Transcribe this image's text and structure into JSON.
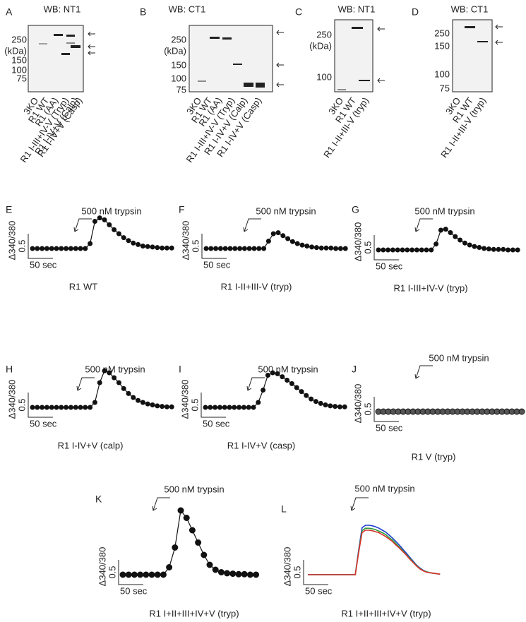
{
  "blots": [
    {
      "letter": "A",
      "title": "WB: NT1",
      "ticks": [
        250,
        150,
        100,
        75
      ],
      "unit": "(kDa)",
      "lanes": [
        "3KO",
        "R1 WT",
        "R1 (AA)",
        "R1 I-III+IV-V (Tryp)",
        "R1 I-IV+V (Calp)",
        "R1 I-IV+V (Casp)"
      ]
    },
    {
      "letter": "B",
      "title": "WB: CT1",
      "ticks": [
        250,
        150,
        100,
        75
      ],
      "unit": "(kDa)",
      "lanes": [
        "3KO",
        "R1 WT",
        "R1 (AA)",
        "R1 I-III+IV-V (Tryp)",
        "R1 I-IV+V (Calp)",
        "R1 I-IV+V (Casp)"
      ]
    },
    {
      "letter": "C",
      "title": "WB: NT1",
      "ticks": [
        250,
        100
      ],
      "unit": "(kDa)",
      "lanes": [
        "3KO",
        "R1 WT",
        "R1 I-II+III-V (tryp)"
      ]
    },
    {
      "letter": "D",
      "title": "WB: CT1",
      "ticks": [
        250,
        150,
        100,
        75
      ],
      "lanes": [
        "3KO",
        "R1 WT",
        "R1 I-II+III-V (tryp)"
      ]
    }
  ],
  "traces": [
    {
      "letter": "E",
      "stimulus": "500 nM trypsin",
      "ylabel": "Δ340/380",
      "yscale": 0.5,
      "xscale": "50 sec",
      "caption": "R1 WT",
      "values": [
        0,
        0,
        0,
        0,
        0,
        0,
        0,
        0,
        0,
        0,
        0,
        0,
        0.1,
        0.55,
        0.62,
        0.58,
        0.48,
        0.38,
        0.3,
        0.22,
        0.16,
        0.11,
        0.08,
        0.05,
        0.04,
        0.03,
        0.02,
        0.01,
        0.01,
        0.01
      ]
    },
    {
      "letter": "F",
      "stimulus": "500 nM trypsin",
      "ylabel": "Δ340/380",
      "yscale": 0.5,
      "xscale": "50 sec",
      "caption": "R1 I-II+III-V (tryp)",
      "values": [
        0,
        0,
        0,
        0,
        0,
        0,
        0,
        0,
        0,
        0,
        0,
        0,
        0,
        0.15,
        0.3,
        0.32,
        0.26,
        0.2,
        0.14,
        0.1,
        0.07,
        0.05,
        0.03,
        0.02,
        0.01,
        0.01,
        0.01,
        0,
        0,
        0
      ]
    },
    {
      "letter": "G",
      "stimulus": "500 nM trypsin",
      "ylabel": "Δ340/380",
      "yscale": 0.5,
      "xscale": "50 sec",
      "caption": "R1 I-III+IV-V (tryp)",
      "values": [
        0,
        0,
        0,
        0,
        0,
        0,
        0,
        0,
        0,
        0,
        0,
        0,
        0.12,
        0.4,
        0.42,
        0.35,
        0.27,
        0.2,
        0.14,
        0.1,
        0.07,
        0.05,
        0.03,
        0.02,
        0.01,
        0.01,
        0.01,
        0,
        0,
        0
      ]
    },
    {
      "letter": "H",
      "stimulus": "500 nM trypsin",
      "ylabel": "Δ340/380",
      "yscale": 0.5,
      "xscale": "50 sec",
      "caption": "R1 I-IV+V (calp)",
      "values": [
        0,
        0,
        0,
        0,
        0,
        0,
        0,
        0,
        0,
        0,
        0,
        0,
        0,
        0.1,
        0.5,
        0.74,
        0.7,
        0.6,
        0.5,
        0.38,
        0.28,
        0.2,
        0.14,
        0.1,
        0.07,
        0.05,
        0.03,
        0.02,
        0.01,
        0.01
      ]
    },
    {
      "letter": "I",
      "stimulus": "500 nM trypsin",
      "ylabel": "Δ340/380",
      "yscale": 0.5,
      "xscale": "50 sec",
      "caption": "R1 I-IV+V (casp)",
      "values": [
        0,
        0,
        0,
        0,
        0,
        0,
        0,
        0,
        0,
        0,
        0,
        0.1,
        0.35,
        0.65,
        0.7,
        0.68,
        0.62,
        0.55,
        0.48,
        0.4,
        0.32,
        0.24,
        0.17,
        0.12,
        0.08,
        0.05,
        0.03,
        0.02,
        0.01,
        0.01
      ]
    },
    {
      "letter": "J",
      "stimulus": "500 nM trypsin",
      "ylabel": "Δ340/380",
      "yscale": 0.5,
      "xscale": "50 sec",
      "caption": "R1 V (tryp)",
      "values": [
        0,
        0,
        0,
        0,
        0,
        0,
        0,
        0,
        0,
        0,
        0,
        0,
        0,
        0,
        0,
        0,
        0,
        0,
        0,
        0,
        0,
        0,
        0,
        0,
        0,
        0,
        0,
        0,
        0,
        0
      ]
    },
    {
      "letter": "K",
      "stimulus": "500 nM trypsin",
      "ylabel": "Δ340/380",
      "yscale": 0.5,
      "xscale": "50 sec",
      "caption": "R1 I+II+III+IV+V (tryp)",
      "values": [
        0,
        0,
        0,
        0,
        0,
        0,
        0,
        0,
        0.15,
        0.55,
        1.3,
        1.15,
        0.9,
        0.65,
        0.4,
        0.2,
        0.1,
        0.05,
        0.03,
        0.02,
        0.01,
        0.01,
        0,
        0
      ]
    },
    {
      "letter": "L",
      "stimulus": "500 nM trypsin",
      "ylabel": "Δ340/380",
      "yscale": 0.5,
      "xscale": "50 sec",
      "caption": "R1 I+II+III+IV+V (tryp)",
      "series": [
        {
          "color": "#1f3fd0",
          "values": [
            0,
            0,
            0,
            0,
            0,
            0,
            0,
            0,
            0,
            0,
            0,
            0,
            0,
            0,
            0,
            0.5,
            0.95,
            1.0,
            1.0,
            0.99,
            0.97,
            0.94,
            0.9,
            0.86,
            0.8,
            0.74,
            0.67,
            0.6,
            0.52,
            0.44,
            0.36,
            0.28,
            0.2,
            0.14,
            0.09,
            0.06,
            0.04,
            0.03,
            0.02,
            0.01
          ]
        },
        {
          "color": "#2a9a3a",
          "values": [
            0,
            0,
            0,
            0,
            0,
            0,
            0,
            0,
            0,
            0,
            0,
            0,
            0,
            0,
            0,
            0.47,
            0.89,
            0.94,
            0.94,
            0.93,
            0.91,
            0.88,
            0.85,
            0.81,
            0.75,
            0.7,
            0.63,
            0.56,
            0.49,
            0.41,
            0.34,
            0.26,
            0.19,
            0.13,
            0.08,
            0.06,
            0.04,
            0.03,
            0.02,
            0.01
          ]
        },
        {
          "color": "#d8322a",
          "values": [
            0,
            0,
            0,
            0,
            0,
            0,
            0,
            0,
            0,
            0,
            0,
            0,
            0,
            0,
            0,
            0.45,
            0.85,
            0.9,
            0.9,
            0.89,
            0.87,
            0.85,
            0.81,
            0.77,
            0.72,
            0.67,
            0.6,
            0.54,
            0.47,
            0.4,
            0.32,
            0.25,
            0.18,
            0.12,
            0.08,
            0.05,
            0.04,
            0.03,
            0.02,
            0.01
          ]
        }
      ]
    }
  ]
}
